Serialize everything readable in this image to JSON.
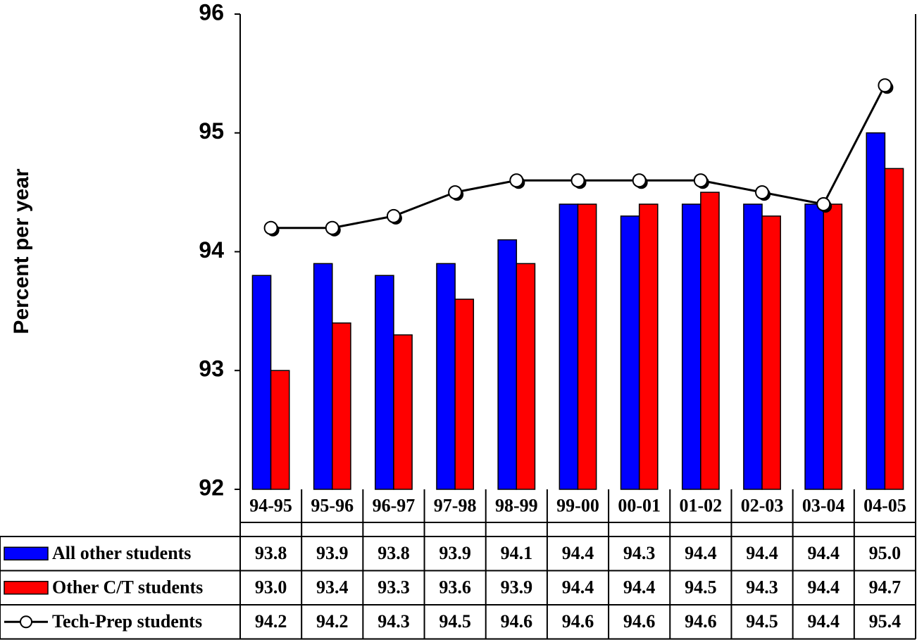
{
  "chart_data": {
    "type": "bar",
    "y_label": "Percent per year",
    "categories": [
      "94-95",
      "95-96",
      "96-97",
      "97-98",
      "98-99",
      "99-00",
      "00-01",
      "01-02",
      "02-03",
      "03-04",
      "04-05"
    ],
    "series": [
      {
        "name": "All other students",
        "color": "#0000ff",
        "type": "bar",
        "values": [
          93.8,
          93.9,
          93.8,
          93.9,
          94.1,
          94.4,
          94.3,
          94.4,
          94.4,
          94.4,
          95
        ],
        "value_labels": [
          "93.8",
          "93.9",
          "93.8",
          "93.9",
          "94.1",
          "94.4",
          "94.3",
          "94.4",
          "94.4",
          "94.4",
          "95.0"
        ]
      },
      {
        "name": "Other C/T students",
        "color": "#ff0000",
        "type": "bar",
        "values": [
          93,
          93.4,
          93.3,
          93.6,
          93.9,
          94.4,
          94.4,
          94.5,
          94.3,
          94.4,
          94.7
        ],
        "value_labels": [
          "93.0",
          "93.4",
          "93.3",
          "93.6",
          "93.9",
          "94.4",
          "94.4",
          "94.5",
          "94.3",
          "94.4",
          "94.7"
        ]
      },
      {
        "name": "Tech-Prep students",
        "color": "#000000",
        "type": "line",
        "values": [
          94.2,
          94.2,
          94.3,
          94.5,
          94.6,
          94.6,
          94.6,
          94.6,
          94.5,
          94.4,
          95.4
        ]
      }
    ],
    "ylim": [
      92,
      96
    ],
    "yticks": [
      92,
      93,
      94,
      95,
      96
    ],
    "grid": false
  }
}
